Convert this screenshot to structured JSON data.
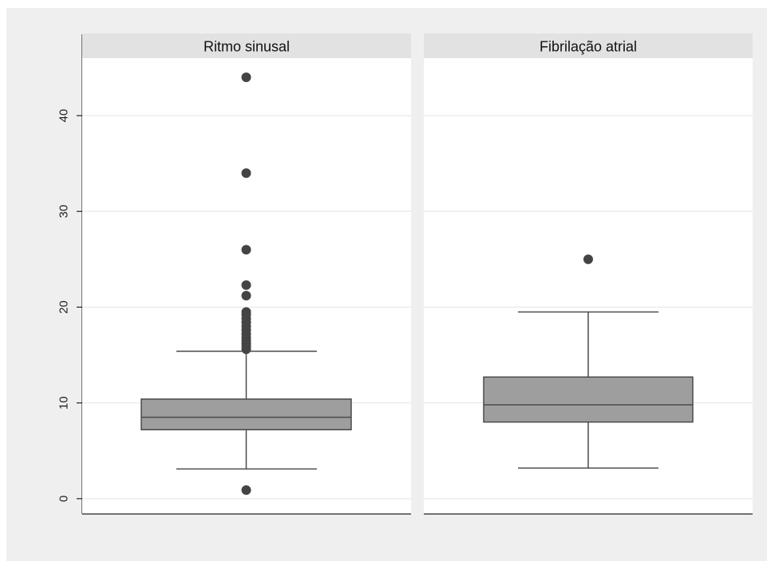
{
  "chart_data": {
    "type": "boxplot",
    "title": "",
    "xlabel": "",
    "ylabel": "",
    "ylim": [
      -1.6,
      46
    ],
    "yticks": [
      0,
      10,
      20,
      30,
      40
    ],
    "grid": true,
    "legend": "none",
    "panels": [
      {
        "title": "Ritmo sinusal",
        "box": {
          "whisker_low": 3.1,
          "q1": 7.2,
          "median": 8.5,
          "q3": 10.4,
          "whisker_high": 15.4
        },
        "outliers": [
          0.9,
          15.6,
          15.9,
          16.2,
          16.5,
          16.8,
          17.2,
          17.6,
          18.0,
          18.4,
          18.8,
          19.2,
          19.5,
          21.2,
          22.3,
          26.0,
          34.0,
          44.0
        ]
      },
      {
        "title": "Fibrilação atrial",
        "box": {
          "whisker_low": 3.2,
          "q1": 8.0,
          "median": 9.8,
          "q3": 12.7,
          "whisker_high": 19.5
        },
        "outliers": [
          25.0
        ]
      }
    ],
    "colors": {
      "box_fill": "#9e9e9e",
      "box_stroke": "#4a4a4a",
      "outlier": "#444444",
      "grid": "#e9e9e9",
      "panel_header": "#e2e2e2",
      "background": "#efefef"
    }
  }
}
